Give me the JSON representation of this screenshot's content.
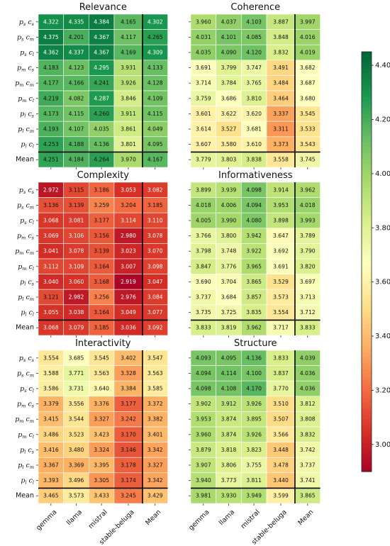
{
  "chart_data": {
    "type": "heatmap",
    "columns": [
      "gemma",
      "llama",
      "mistral",
      "stable-beluga",
      "Mean"
    ],
    "rows": [
      {
        "main": "p",
        "s1": "s",
        "m": "c",
        "s2": "s"
      },
      {
        "main": "p",
        "s1": "s",
        "m": "c",
        "s2": "m"
      },
      {
        "main": "p",
        "s1": "s",
        "m": "c",
        "s2": "l"
      },
      {
        "main": "p",
        "s1": "m",
        "m": "c",
        "s2": "s"
      },
      {
        "main": "p",
        "s1": "m",
        "m": "c",
        "s2": "m"
      },
      {
        "main": "p",
        "s1": "m",
        "m": "c",
        "s2": "l"
      },
      {
        "main": "p",
        "s1": "l",
        "m": "c",
        "s2": "s"
      },
      {
        "main": "p",
        "s1": "l",
        "m": "c",
        "s2": "m"
      },
      {
        "main": "p",
        "s1": "l",
        "m": "c",
        "s2": "l"
      },
      {
        "plain": "Mean"
      }
    ],
    "colorbar": {
      "min": 2.9,
      "max": 4.45,
      "ticks": [
        "3.00",
        "3.20",
        "3.40",
        "3.60",
        "3.80",
        "4.00",
        "4.20",
        "4.40"
      ],
      "tick_values": [
        3.0,
        3.2,
        3.4,
        3.6,
        3.8,
        4.0,
        4.2,
        4.4
      ],
      "colormap": "RdYlGn"
    },
    "panels": [
      {
        "title": "Relevance",
        "values": [
          [
            4.322,
            4.335,
            4.384,
            4.165,
            4.302
          ],
          [
            4.375,
            4.201,
            4.367,
            4.117,
            4.265
          ],
          [
            4.362,
            4.337,
            4.367,
            4.169,
            4.309
          ],
          [
            4.183,
            4.123,
            4.295,
            3.931,
            4.133
          ],
          [
            4.177,
            4.166,
            4.241,
            3.926,
            4.128
          ],
          [
            4.219,
            4.082,
            4.287,
            3.846,
            4.109
          ],
          [
            4.173,
            4.115,
            4.26,
            3.911,
            4.115
          ],
          [
            4.193,
            4.107,
            4.035,
            3.861,
            4.049
          ],
          [
            4.253,
            4.188,
            4.136,
            3.801,
            4.095
          ],
          [
            4.251,
            4.184,
            4.264,
            3.97,
            4.167
          ]
        ]
      },
      {
        "title": "Coherence",
        "values": [
          [
            3.96,
            4.037,
            4.103,
            3.887,
            3.997
          ],
          [
            4.031,
            4.101,
            4.085,
            3.848,
            4.016
          ],
          [
            4.035,
            4.09,
            4.12,
            3.832,
            4.019
          ],
          [
            3.691,
            3.799,
            3.747,
            3.491,
            3.682
          ],
          [
            3.714,
            3.784,
            3.765,
            3.484,
            3.687
          ],
          [
            3.759,
            3.686,
            3.81,
            3.464,
            3.68
          ],
          [
            3.601,
            3.622,
            3.62,
            3.337,
            3.545
          ],
          [
            3.614,
            3.527,
            3.681,
            3.311,
            3.533
          ],
          [
            3.607,
            3.58,
            3.61,
            3.373,
            3.543
          ],
          [
            3.779,
            3.803,
            3.838,
            3.558,
            3.745
          ]
        ]
      },
      {
        "title": "Complexity",
        "values": [
          [
            2.972,
            3.115,
            3.186,
            3.053,
            3.082
          ],
          [
            3.136,
            3.139,
            3.259,
            3.204,
            3.185
          ],
          [
            3.068,
            3.081,
            3.177,
            3.114,
            3.11
          ],
          [
            3.069,
            3.106,
            3.156,
            2.98,
            3.078
          ],
          [
            3.041,
            3.078,
            3.139,
            3.023,
            3.07
          ],
          [
            3.112,
            3.109,
            3.164,
            3.007,
            3.098
          ],
          [
            3.04,
            3.06,
            3.168,
            2.919,
            3.047
          ],
          [
            3.121,
            2.982,
            3.256,
            2.976,
            3.084
          ],
          [
            3.055,
            3.038,
            3.164,
            3.049,
            3.077
          ],
          [
            3.068,
            3.079,
            3.185,
            3.036,
            3.092
          ]
        ]
      },
      {
        "title": "Informativeness",
        "values": [
          [
            3.899,
            3.939,
            4.098,
            3.914,
            3.962
          ],
          [
            4.018,
            4.006,
            4.094,
            3.953,
            4.018
          ],
          [
            4.005,
            3.99,
            4.08,
            3.898,
            3.993
          ],
          [
            3.766,
            3.8,
            3.942,
            3.647,
            3.789
          ],
          [
            3.798,
            3.748,
            3.922,
            3.692,
            3.79
          ],
          [
            3.847,
            3.776,
            3.965,
            3.691,
            3.82
          ],
          [
            3.69,
            3.704,
            3.865,
            3.529,
            3.697
          ],
          [
            3.737,
            3.684,
            3.857,
            3.573,
            3.713
          ],
          [
            3.735,
            3.725,
            3.835,
            3.554,
            3.712
          ],
          [
            3.833,
            3.819,
            3.962,
            3.717,
            3.833
          ]
        ]
      },
      {
        "title": "Interactivity",
        "values": [
          [
            3.554,
            3.685,
            3.545,
            3.402,
            3.547
          ],
          [
            3.588,
            3.771,
            3.563,
            3.328,
            3.563
          ],
          [
            3.586,
            3.731,
            3.64,
            3.384,
            3.585
          ],
          [
            3.379,
            3.556,
            3.376,
            3.177,
            3.372
          ],
          [
            3.415,
            3.544,
            3.327,
            3.242,
            3.382
          ],
          [
            3.486,
            3.523,
            3.423,
            3.17,
            3.401
          ],
          [
            3.416,
            3.48,
            3.324,
            3.146,
            3.342
          ],
          [
            3.367,
            3.369,
            3.395,
            3.178,
            3.327
          ],
          [
            3.393,
            3.496,
            3.305,
            3.174,
            3.342
          ],
          [
            3.465,
            3.573,
            3.433,
            3.245,
            3.429
          ]
        ]
      },
      {
        "title": "Structure",
        "values": [
          [
            4.093,
            4.095,
            4.136,
            3.833,
            4.039
          ],
          [
            4.094,
            4.114,
            4.1,
            3.837,
            4.036
          ],
          [
            4.098,
            4.108,
            4.17,
            3.77,
            4.036
          ],
          [
            3.902,
            3.912,
            3.926,
            3.51,
            3.812
          ],
          [
            3.953,
            3.874,
            3.895,
            3.507,
            3.808
          ],
          [
            3.96,
            3.874,
            3.926,
            3.566,
            3.832
          ],
          [
            3.879,
            3.818,
            3.823,
            3.448,
            3.742
          ],
          [
            3.907,
            3.806,
            3.755,
            3.478,
            3.737
          ],
          [
            3.94,
            3.773,
            3.811,
            3.44,
            3.741
          ],
          [
            3.981,
            3.93,
            3.949,
            3.599,
            3.865
          ]
        ]
      }
    ]
  }
}
